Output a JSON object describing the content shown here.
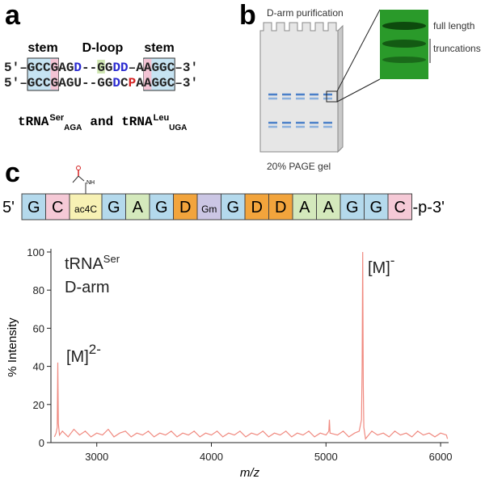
{
  "panel_labels": [
    "a",
    "b",
    "c"
  ],
  "panel_a": {
    "region_labels": [
      "stem",
      "D-loop",
      "stem"
    ],
    "sequences": [
      [
        {
          "text": "5'–GCCGAG",
          "color": "#222"
        },
        {
          "text": "D",
          "color": "#2a2ad0"
        },
        {
          "text": "--GG",
          "color": "#222"
        },
        {
          "text": "DD",
          "color": "#2a2ad0"
        },
        {
          "text": "–AAGGC–3'",
          "color": "#222"
        }
      ],
      [
        {
          "text": "5'–GCCGAGU--GG",
          "color": "#222"
        },
        {
          "text": "D",
          "color": "#2a2ad0"
        },
        {
          "text": "C",
          "color": "#222"
        },
        {
          "text": "P",
          "color": "#d42020"
        },
        {
          "text": "AAGGC–3'",
          "color": "#222"
        }
      ]
    ],
    "caption": {
      "name1": "tRNA",
      "sup1": "Ser",
      "sub1": "AGA",
      "joiner": "and",
      "name2": "tRNA",
      "sup2": "Leu",
      "sub2": "UGA"
    }
  },
  "panel_b": {
    "title": "D-arm purification",
    "band_labels": [
      "full length",
      "truncations"
    ],
    "gel_label": "20% PAGE gel"
  },
  "panel_c": {
    "five_prime": "5'",
    "three_prime": "-p-3'",
    "modification_group": "NH",
    "nucleotides": [
      {
        "label": "G",
        "color": "#b4d9ec"
      },
      {
        "label": "C",
        "color": "#f5c9d6"
      },
      {
        "label": "ac4C",
        "color": "#f7f1b4"
      },
      {
        "label": "G",
        "color": "#b4d9ec"
      },
      {
        "label": "A",
        "color": "#d4e9bc"
      },
      {
        "label": "G",
        "color": "#b4d9ec"
      },
      {
        "label": "D",
        "color": "#f2a43c"
      },
      {
        "label": "Gm",
        "color": "#cbc6e4"
      },
      {
        "label": "G",
        "color": "#b4d9ec"
      },
      {
        "label": "D",
        "color": "#f2a43c"
      },
      {
        "label": "D",
        "color": "#f2a43c"
      },
      {
        "label": "A",
        "color": "#d4e9bc"
      },
      {
        "label": "A",
        "color": "#d4e9bc"
      },
      {
        "label": "G",
        "color": "#b4d9ec"
      },
      {
        "label": "G",
        "color": "#b4d9ec"
      },
      {
        "label": "C",
        "color": "#f5c9d6"
      }
    ]
  },
  "chart_data": {
    "type": "line",
    "x_label": "m/z",
    "y_label": "% Intensity",
    "sample": {
      "name": "tRNA",
      "sup": "Ser",
      "line2": "D-arm"
    },
    "peak_labels": [
      {
        "text": "[M]",
        "sup": "2-"
      },
      {
        "text": "[M]",
        "sup": "-"
      }
    ],
    "xlim": [
      2600,
      6070
    ],
    "ylim": [
      0,
      100
    ],
    "xticks": [
      3000,
      4000,
      5000,
      6000
    ],
    "yticks": [
      0,
      20,
      40,
      60,
      80,
      100
    ],
    "series": [
      {
        "color": "#f08a80",
        "x": [
          2630,
          2645,
          2655,
          2660,
          2665,
          2675,
          2700,
          2750,
          2800,
          2850,
          2900,
          2950,
          3000,
          3050,
          3100,
          3150,
          3200,
          3250,
          3300,
          3350,
          3400,
          3450,
          3500,
          3550,
          3600,
          3650,
          3700,
          3750,
          3800,
          3850,
          3900,
          3950,
          4000,
          4050,
          4100,
          4150,
          4200,
          4250,
          4300,
          4350,
          4400,
          4450,
          4500,
          4550,
          4600,
          4650,
          4700,
          4750,
          4800,
          4850,
          4900,
          4950,
          5000,
          5025,
          5030,
          5035,
          5100,
          5150,
          5200,
          5250,
          5290,
          5310,
          5315,
          5320,
          5325,
          5330,
          5345,
          5400,
          5450,
          5500,
          5550,
          5600,
          5650,
          5700,
          5750,
          5800,
          5850,
          5900,
          5950,
          6000,
          6050,
          6060
        ],
        "values": [
          3,
          5,
          8,
          42,
          10,
          4,
          6,
          3,
          7,
          4,
          6,
          3,
          5,
          4,
          7,
          3,
          5,
          6,
          3,
          5,
          4,
          6,
          3,
          5,
          4,
          6,
          3,
          5,
          4,
          6,
          3,
          5,
          4,
          6,
          3,
          5,
          4,
          6,
          3,
          5,
          4,
          6,
          3,
          5,
          4,
          6,
          3,
          5,
          4,
          6,
          3,
          5,
          4,
          6,
          12,
          5,
          4,
          6,
          3,
          5,
          6,
          12,
          40,
          100,
          30,
          8,
          2,
          6,
          4,
          5,
          3,
          6,
          4,
          5,
          3,
          6,
          4,
          5,
          3,
          5,
          4,
          2
        ]
      }
    ]
  }
}
